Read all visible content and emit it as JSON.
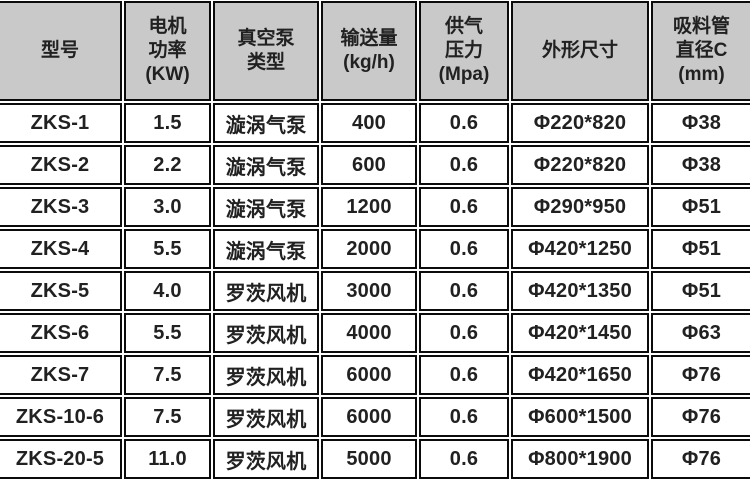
{
  "colors": {
    "header_bg": "#c9c9c9",
    "row_bg": "#ffffff",
    "border": "#0b0b0b",
    "text": "#212121"
  },
  "chart_data": {
    "type": "table",
    "title": "",
    "column_ids": [
      "model",
      "motor-power",
      "pump-type",
      "capacity",
      "air-pressure",
      "dimensions",
      "pipe-diameter"
    ],
    "columns": [
      "型号",
      "电机\n功率\n(KW)",
      "真空泵\n类型",
      "输送量\n(kg/h)",
      "供气\n压力\n(Mpa)",
      "外形尺寸",
      "吸料管\n直径C\n(mm)"
    ],
    "rows": [
      [
        "ZKS-1",
        "1.5",
        "漩涡气泵",
        "400",
        "0.6",
        "Φ220*820",
        "Φ38"
      ],
      [
        "ZKS-2",
        "2.2",
        "漩涡气泵",
        "600",
        "0.6",
        "Φ220*820",
        "Φ38"
      ],
      [
        "ZKS-3",
        "3.0",
        "漩涡气泵",
        "1200",
        "0.6",
        "Φ290*950",
        "Φ51"
      ],
      [
        "ZKS-4",
        "5.5",
        "漩涡气泵",
        "2000",
        "0.6",
        "Φ420*1250",
        "Φ51"
      ],
      [
        "ZKS-5",
        "4.0",
        "罗茨风机",
        "3000",
        "0.6",
        "Φ420*1350",
        "Φ51"
      ],
      [
        "ZKS-6",
        "5.5",
        "罗茨风机",
        "4000",
        "0.6",
        "Φ420*1450",
        "Φ63"
      ],
      [
        "ZKS-7",
        "7.5",
        "罗茨风机",
        "6000",
        "0.6",
        "Φ420*1650",
        "Φ76"
      ],
      [
        "ZKS-10-6",
        "7.5",
        "罗茨风机",
        "6000",
        "0.6",
        "Φ600*1500",
        "Φ76"
      ],
      [
        "ZKS-20-5",
        "11.0",
        "罗茨风机",
        "5000",
        "0.6",
        "Φ800*1900",
        "Φ76"
      ]
    ]
  }
}
